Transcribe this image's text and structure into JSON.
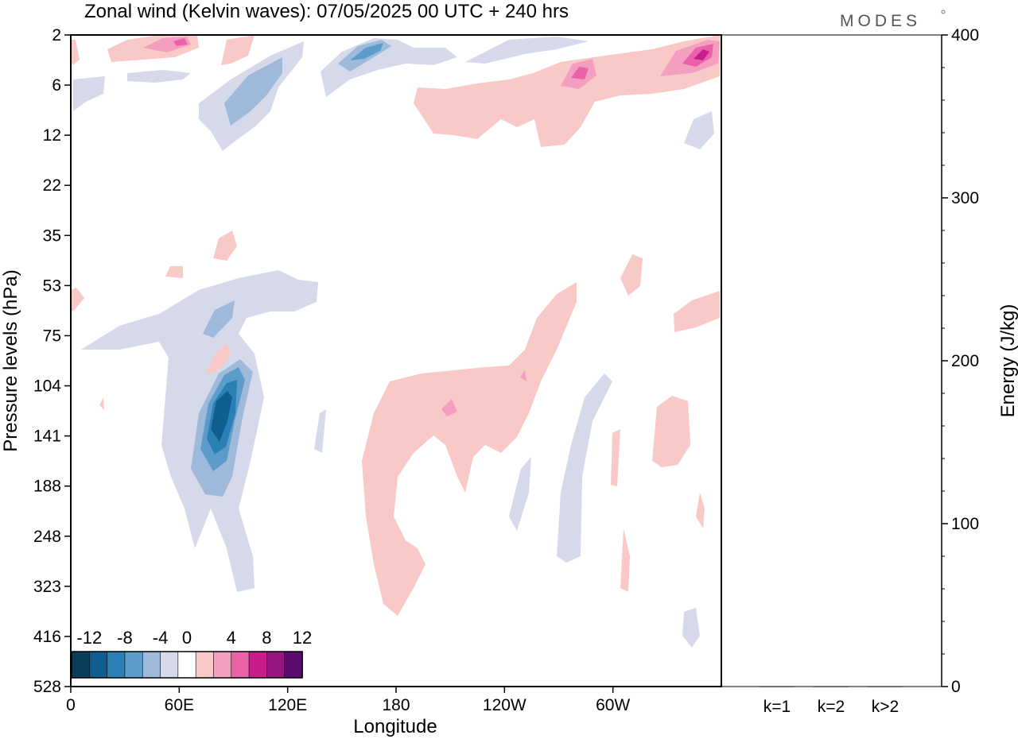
{
  "title": "Zonal wind (Kelvin waves):  07/05/2025  00 UTC  + 240 hrs",
  "logo": "MODES",
  "chart_data": {
    "type": "heatmap",
    "title": "Zonal wind (Kelvin waves):  07/05/2025  00 UTC  + 240 hrs",
    "xlabel": "Longitude",
    "ylabel": "Pressure levels (hPa)",
    "x_ticks": [
      "0",
      "60E",
      "120E",
      "180",
      "120W",
      "60W"
    ],
    "x_tick_deg": [
      0,
      60,
      120,
      180,
      240,
      300
    ],
    "x_range_deg": [
      0,
      360
    ],
    "y_ticks": [
      "2",
      "6",
      "12",
      "22",
      "35",
      "53",
      "75",
      "104",
      "141",
      "188",
      "248",
      "323",
      "416",
      "528"
    ],
    "y_scale": "categorical pressure levels (top = 2 hPa, bottom = 528 hPa)",
    "colorbar": {
      "labels": [
        "-12",
        "-8",
        "-4",
        "0",
        "4",
        "8",
        "12"
      ],
      "levels": [
        -14,
        -12,
        -10,
        -8,
        -6,
        -4,
        -2,
        2,
        4,
        6,
        8,
        10,
        12,
        14
      ],
      "colors": [
        "#0b3d5c",
        "#0e5f8f",
        "#2a7fb7",
        "#5b9ccb",
        "#9fb9da",
        "#d5d9ea",
        "#ffffff",
        "#f8c9c6",
        "#f49fbf",
        "#ea62a8",
        "#c81e8c",
        "#96157f",
        "#5b0a6e"
      ],
      "position": "lower-left inside plot"
    },
    "anomalies": [
      {
        "lon": 80,
        "level": 141,
        "u": -13,
        "sign": "easterly"
      },
      {
        "lon": 63,
        "level": 75,
        "u": -6,
        "sign": "easterly"
      },
      {
        "lon": 165,
        "level": 3,
        "u": -8,
        "sign": "easterly"
      },
      {
        "lon": 103,
        "level": 7,
        "u": -6,
        "sign": "easterly"
      },
      {
        "lon": 205,
        "level": 141,
        "u": 4,
        "sign": "westerly"
      },
      {
        "lon": 286,
        "level": 5,
        "u": 8,
        "sign": "westerly"
      },
      {
        "lon": 350,
        "level": 3,
        "u": 10,
        "sign": "westerly"
      },
      {
        "lon": 60,
        "level": 2,
        "u": 6,
        "sign": "westerly"
      }
    ],
    "energy_panel": {
      "ylabel": "Energy (J/kg)",
      "ylim": [
        0,
        400
      ],
      "y_ticks": [
        0,
        100,
        200,
        300,
        400
      ],
      "categories": [
        "k=1",
        "k=2",
        "k>2"
      ],
      "values": [
        0,
        0,
        0
      ]
    }
  }
}
